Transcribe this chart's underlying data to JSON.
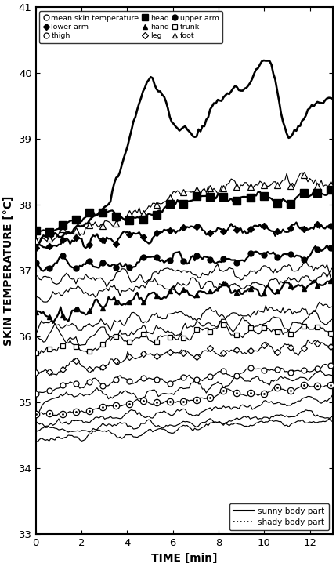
{
  "xlabel": "TIME [min]",
  "ylabel": "SKIN TEMPERATURE [°C]",
  "xlim": [
    0,
    13
  ],
  "ylim": [
    33,
    41
  ],
  "xticks": [
    0,
    2,
    4,
    6,
    8,
    10,
    12
  ],
  "yticks": [
    33,
    34,
    35,
    36,
    37,
    38,
    39,
    40,
    41
  ],
  "time_points": 156,
  "time_max": 13
}
